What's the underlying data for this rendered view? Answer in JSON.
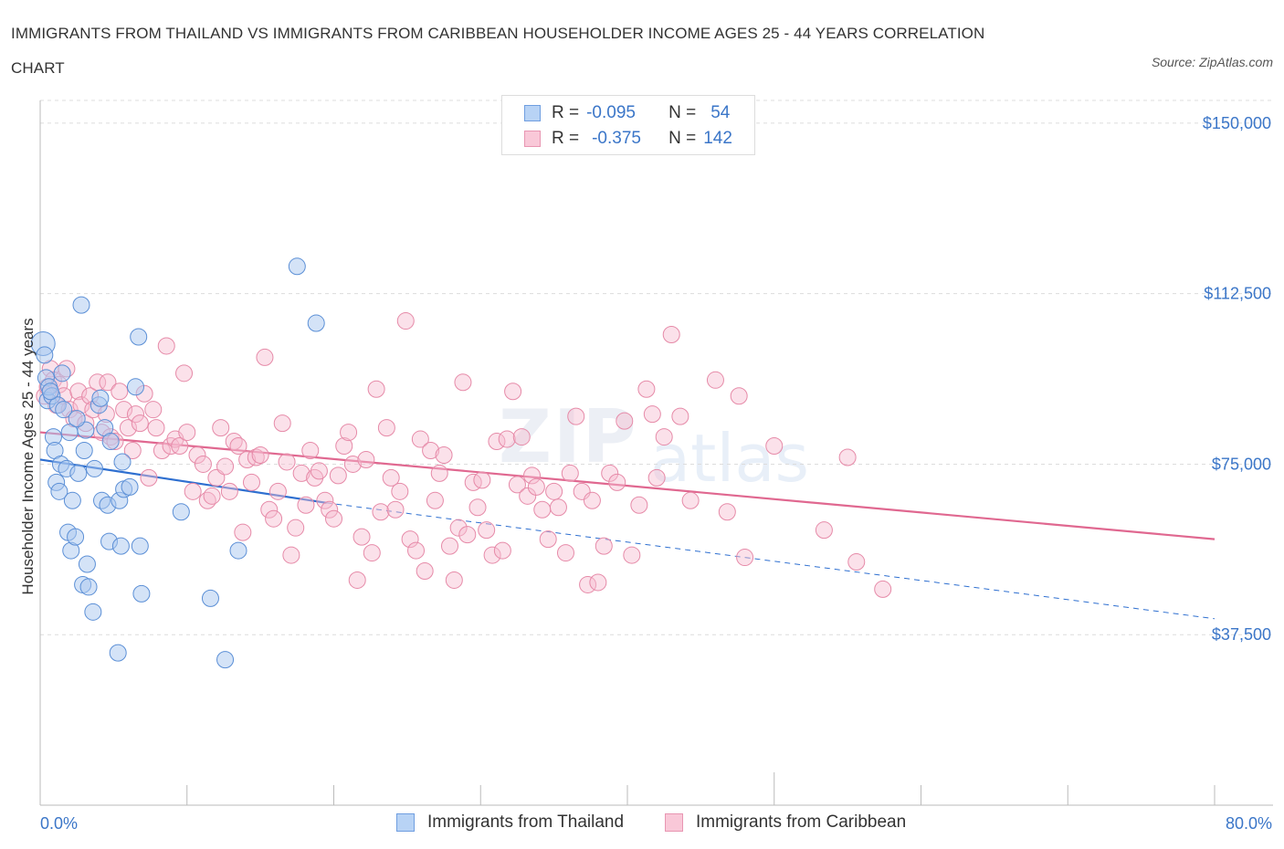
{
  "title_line1": "IMMIGRANTS FROM THAILAND VS IMMIGRANTS FROM CARIBBEAN HOUSEHOLDER INCOME AGES 25 - 44 YEARS CORRELATION",
  "title_line2": "CHART",
  "source": "Source: ZipAtlas.com",
  "watermark_a": "ZIP",
  "watermark_b": "atlas",
  "legend": {
    "r_label": "R =",
    "n_label": "N =",
    "series1_r": "-0.095",
    "series1_n": "54",
    "series2_r": "-0.375",
    "series2_n": "142"
  },
  "colors": {
    "blue_fill": "#aac8f0",
    "blue_stroke": "#5b8fd6",
    "blue_line": "#2e6fd0",
    "pink_fill": "#f7bcd0",
    "pink_stroke": "#e68aa8",
    "pink_line": "#e06890",
    "axis_text": "#3b76c8",
    "grid": "#dcdcdc"
  },
  "chart_data": {
    "type": "scatter",
    "xlabel": "",
    "ylabel": "Householder Income Ages 25 - 44 years",
    "xlim": [
      0,
      80
    ],
    "ylim": [
      0,
      155000
    ],
    "x_tick_labels": [
      "0.0%",
      "80.0%"
    ],
    "y_ticks": [
      37500,
      75000,
      112500,
      150000
    ],
    "y_tick_labels": [
      "$37,500",
      "$75,000",
      "$112,500",
      "$150,000"
    ],
    "grid": true,
    "legend_placement": "top-center",
    "series": [
      {
        "name": "Immigrants from Thailand",
        "color": "#5b8fd6",
        "trend": {
          "x0": 0,
          "y0": 76000,
          "x1": 19.5,
          "y1": 66500,
          "dashed_to_x": 80,
          "dashed_to_y": 41000
        },
        "points": [
          [
            0.2,
            101500
          ],
          [
            0.3,
            99000
          ],
          [
            0.4,
            94000
          ],
          [
            0.5,
            89000
          ],
          [
            0.6,
            92000
          ],
          [
            0.8,
            90000
          ],
          [
            0.9,
            81000
          ],
          [
            1.0,
            78000
          ],
          [
            1.1,
            71000
          ],
          [
            1.2,
            88000
          ],
          [
            1.3,
            69000
          ],
          [
            1.4,
            75000
          ],
          [
            1.6,
            87000
          ],
          [
            1.8,
            74000
          ],
          [
            1.9,
            60000
          ],
          [
            2.0,
            82000
          ],
          [
            2.1,
            56000
          ],
          [
            2.2,
            67000
          ],
          [
            2.4,
            59000
          ],
          [
            2.6,
            73000
          ],
          [
            2.8,
            110000
          ],
          [
            2.9,
            48500
          ],
          [
            3.0,
            78000
          ],
          [
            3.1,
            82500
          ],
          [
            3.2,
            53000
          ],
          [
            3.3,
            48000
          ],
          [
            3.6,
            42500
          ],
          [
            3.7,
            74000
          ],
          [
            4.0,
            88000
          ],
          [
            4.1,
            89500
          ],
          [
            4.2,
            67000
          ],
          [
            4.4,
            83000
          ],
          [
            4.6,
            66000
          ],
          [
            4.7,
            58000
          ],
          [
            4.8,
            80000
          ],
          [
            5.3,
            33500
          ],
          [
            5.4,
            67000
          ],
          [
            5.5,
            57000
          ],
          [
            5.6,
            75500
          ],
          [
            5.7,
            69500
          ],
          [
            6.1,
            70000
          ],
          [
            6.5,
            92000
          ],
          [
            6.7,
            103000
          ],
          [
            6.8,
            57000
          ],
          [
            6.9,
            46500
          ],
          [
            9.6,
            64500
          ],
          [
            11.6,
            45500
          ],
          [
            12.6,
            32000
          ],
          [
            13.5,
            56000
          ],
          [
            17.5,
            118500
          ],
          [
            18.8,
            106000
          ],
          [
            0.7,
            91000
          ],
          [
            1.5,
            95000
          ],
          [
            2.5,
            85000
          ]
        ]
      },
      {
        "name": "Immigrants from Caribbean",
        "color": "#e68aa8",
        "trend": {
          "x0": 0,
          "y0": 82000,
          "x1": 80,
          "y1": 58500
        },
        "points": [
          [
            0.3,
            90000
          ],
          [
            0.5,
            92000
          ],
          [
            0.7,
            96000
          ],
          [
            0.9,
            93500
          ],
          [
            1.1,
            88000
          ],
          [
            1.3,
            92500
          ],
          [
            1.6,
            90000
          ],
          [
            1.8,
            96000
          ],
          [
            2.0,
            87000
          ],
          [
            2.3,
            85000
          ],
          [
            2.6,
            91000
          ],
          [
            2.8,
            88000
          ],
          [
            3.1,
            84000
          ],
          [
            3.4,
            90000
          ],
          [
            3.6,
            87000
          ],
          [
            3.9,
            93000
          ],
          [
            4.2,
            82000
          ],
          [
            4.5,
            86000
          ],
          [
            4.8,
            81000
          ],
          [
            4.6,
            93000
          ],
          [
            5.1,
            80000
          ],
          [
            5.4,
            91000
          ],
          [
            5.7,
            87000
          ],
          [
            6.0,
            83000
          ],
          [
            6.3,
            78000
          ],
          [
            6.5,
            86000
          ],
          [
            6.8,
            84000
          ],
          [
            7.1,
            90500
          ],
          [
            7.4,
            72000
          ],
          [
            7.7,
            87000
          ],
          [
            7.9,
            83000
          ],
          [
            8.3,
            78000
          ],
          [
            8.6,
            101000
          ],
          [
            8.9,
            79000
          ],
          [
            9.2,
            80500
          ],
          [
            9.5,
            79000
          ],
          [
            9.8,
            95000
          ],
          [
            10.0,
            82000
          ],
          [
            10.4,
            69000
          ],
          [
            10.7,
            77000
          ],
          [
            11.1,
            75000
          ],
          [
            11.4,
            67000
          ],
          [
            11.7,
            68000
          ],
          [
            12.0,
            72000
          ],
          [
            12.3,
            83000
          ],
          [
            12.6,
            74500
          ],
          [
            12.9,
            69000
          ],
          [
            13.2,
            80000
          ],
          [
            13.5,
            79000
          ],
          [
            13.8,
            60000
          ],
          [
            14.1,
            76000
          ],
          [
            14.4,
            71000
          ],
          [
            14.7,
            76500
          ],
          [
            15.0,
            77000
          ],
          [
            15.3,
            98500
          ],
          [
            15.6,
            65000
          ],
          [
            15.9,
            63000
          ],
          [
            16.2,
            69000
          ],
          [
            16.5,
            84000
          ],
          [
            16.8,
            75500
          ],
          [
            17.1,
            55000
          ],
          [
            17.4,
            61000
          ],
          [
            17.8,
            73000
          ],
          [
            18.1,
            66000
          ],
          [
            18.4,
            78000
          ],
          [
            18.7,
            72000
          ],
          [
            19.0,
            73500
          ],
          [
            19.4,
            67000
          ],
          [
            19.7,
            65000
          ],
          [
            20.0,
            63000
          ],
          [
            20.3,
            72500
          ],
          [
            20.7,
            79000
          ],
          [
            21.0,
            82000
          ],
          [
            21.3,
            75000
          ],
          [
            21.6,
            49500
          ],
          [
            21.9,
            59000
          ],
          [
            22.2,
            76000
          ],
          [
            22.6,
            55500
          ],
          [
            22.9,
            91500
          ],
          [
            23.2,
            64500
          ],
          [
            23.6,
            83000
          ],
          [
            23.9,
            72000
          ],
          [
            24.2,
            65000
          ],
          [
            24.5,
            69000
          ],
          [
            24.9,
            106500
          ],
          [
            25.2,
            58500
          ],
          [
            25.6,
            56000
          ],
          [
            25.9,
            80500
          ],
          [
            26.2,
            51500
          ],
          [
            26.6,
            78000
          ],
          [
            26.9,
            67000
          ],
          [
            27.2,
            73000
          ],
          [
            27.5,
            77000
          ],
          [
            27.9,
            57000
          ],
          [
            28.2,
            49500
          ],
          [
            28.5,
            61000
          ],
          [
            28.8,
            93000
          ],
          [
            29.1,
            59500
          ],
          [
            29.5,
            71000
          ],
          [
            29.8,
            65500
          ],
          [
            30.1,
            71500
          ],
          [
            30.4,
            60500
          ],
          [
            30.8,
            55000
          ],
          [
            31.1,
            80000
          ],
          [
            31.5,
            56000
          ],
          [
            31.8,
            80500
          ],
          [
            32.2,
            91000
          ],
          [
            32.5,
            70500
          ],
          [
            32.8,
            81000
          ],
          [
            33.2,
            68000
          ],
          [
            33.5,
            72500
          ],
          [
            33.8,
            70000
          ],
          [
            34.2,
            65000
          ],
          [
            34.6,
            58500
          ],
          [
            35.0,
            69000
          ],
          [
            35.3,
            65500
          ],
          [
            35.8,
            55500
          ],
          [
            36.1,
            73000
          ],
          [
            36.5,
            85500
          ],
          [
            36.9,
            69000
          ],
          [
            37.3,
            48500
          ],
          [
            37.6,
            67000
          ],
          [
            38.0,
            49000
          ],
          [
            38.4,
            57000
          ],
          [
            38.8,
            73000
          ],
          [
            39.3,
            71000
          ],
          [
            39.8,
            84500
          ],
          [
            40.3,
            55000
          ],
          [
            40.8,
            66000
          ],
          [
            41.3,
            91500
          ],
          [
            41.7,
            86000
          ],
          [
            42.0,
            72000
          ],
          [
            42.5,
            81000
          ],
          [
            43.0,
            103500
          ],
          [
            43.6,
            85500
          ],
          [
            44.3,
            67000
          ],
          [
            46.0,
            93500
          ],
          [
            46.8,
            64500
          ],
          [
            47.6,
            90000
          ],
          [
            48.0,
            54500
          ],
          [
            50.0,
            79000
          ],
          [
            53.4,
            60500
          ],
          [
            55.0,
            76500
          ],
          [
            55.6,
            53500
          ],
          [
            57.4,
            47500
          ]
        ]
      }
    ]
  },
  "bottom_legend": {
    "item1": "Immigrants from Thailand",
    "item2": "Immigrants from Caribbean"
  }
}
